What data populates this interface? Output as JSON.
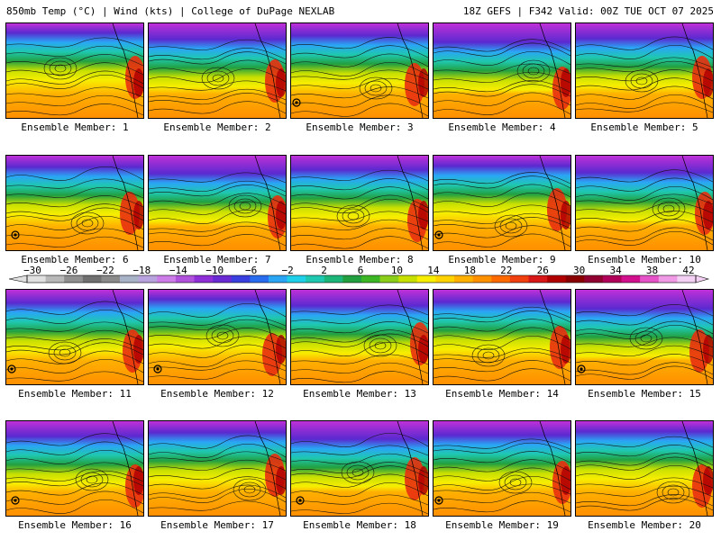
{
  "header": {
    "left": "850mb Temp (°C) | Wind (kts) | College of DuPage NEXLAB",
    "right": "18Z GEFS | F342 Valid: 00Z TUE OCT 07 2025"
  },
  "colorbar": {
    "labels": [
      "−30",
      "−26",
      "−22",
      "−18",
      "−14",
      "−10",
      "−6",
      "−2",
      "2",
      "6",
      "10",
      "14",
      "18",
      "22",
      "26",
      "30",
      "34",
      "38",
      "42"
    ],
    "colors": [
      "#e0e0e0",
      "#b8b8b8",
      "#909090",
      "#707070",
      "#8a8a8a",
      "#a9b3c7",
      "#b9a3df",
      "#cc7de8",
      "#b152dd",
      "#8e2fd8",
      "#6a2ad4",
      "#3a3fe0",
      "#2a6cf0",
      "#2aa6f5",
      "#1fd0e8",
      "#1fc8b0",
      "#1db67a",
      "#22a040",
      "#3cb624",
      "#8ccf1a",
      "#c8e000",
      "#f7ee00",
      "#ffd200",
      "#ffb000",
      "#ff9000",
      "#ff6a00",
      "#f04010",
      "#d81818",
      "#b00000",
      "#8a0000",
      "#900030",
      "#b0005a",
      "#d2108e",
      "#e652c8",
      "#f09ae6",
      "#f4d0f4"
    ]
  },
  "members": [
    {
      "label": "Ensemble Member: 1"
    },
    {
      "label": "Ensemble Member: 2"
    },
    {
      "label": "Ensemble Member: 3"
    },
    {
      "label": "Ensemble Member: 4"
    },
    {
      "label": "Ensemble Member: 5"
    },
    {
      "label": "Ensemble Member: 6"
    },
    {
      "label": "Ensemble Member: 7"
    },
    {
      "label": "Ensemble Member: 8"
    },
    {
      "label": "Ensemble Member: 9"
    },
    {
      "label": "Ensemble Member: 10"
    },
    {
      "label": "Ensemble Member: 11"
    },
    {
      "label": "Ensemble Member: 12"
    },
    {
      "label": "Ensemble Member: 13"
    },
    {
      "label": "Ensemble Member: 14"
    },
    {
      "label": "Ensemble Member: 15"
    },
    {
      "label": "Ensemble Member: 16"
    },
    {
      "label": "Ensemble Member: 17"
    },
    {
      "label": "Ensemble Member: 18"
    },
    {
      "label": "Ensemble Member: 19"
    },
    {
      "label": "Ensemble Member: 20"
    }
  ]
}
